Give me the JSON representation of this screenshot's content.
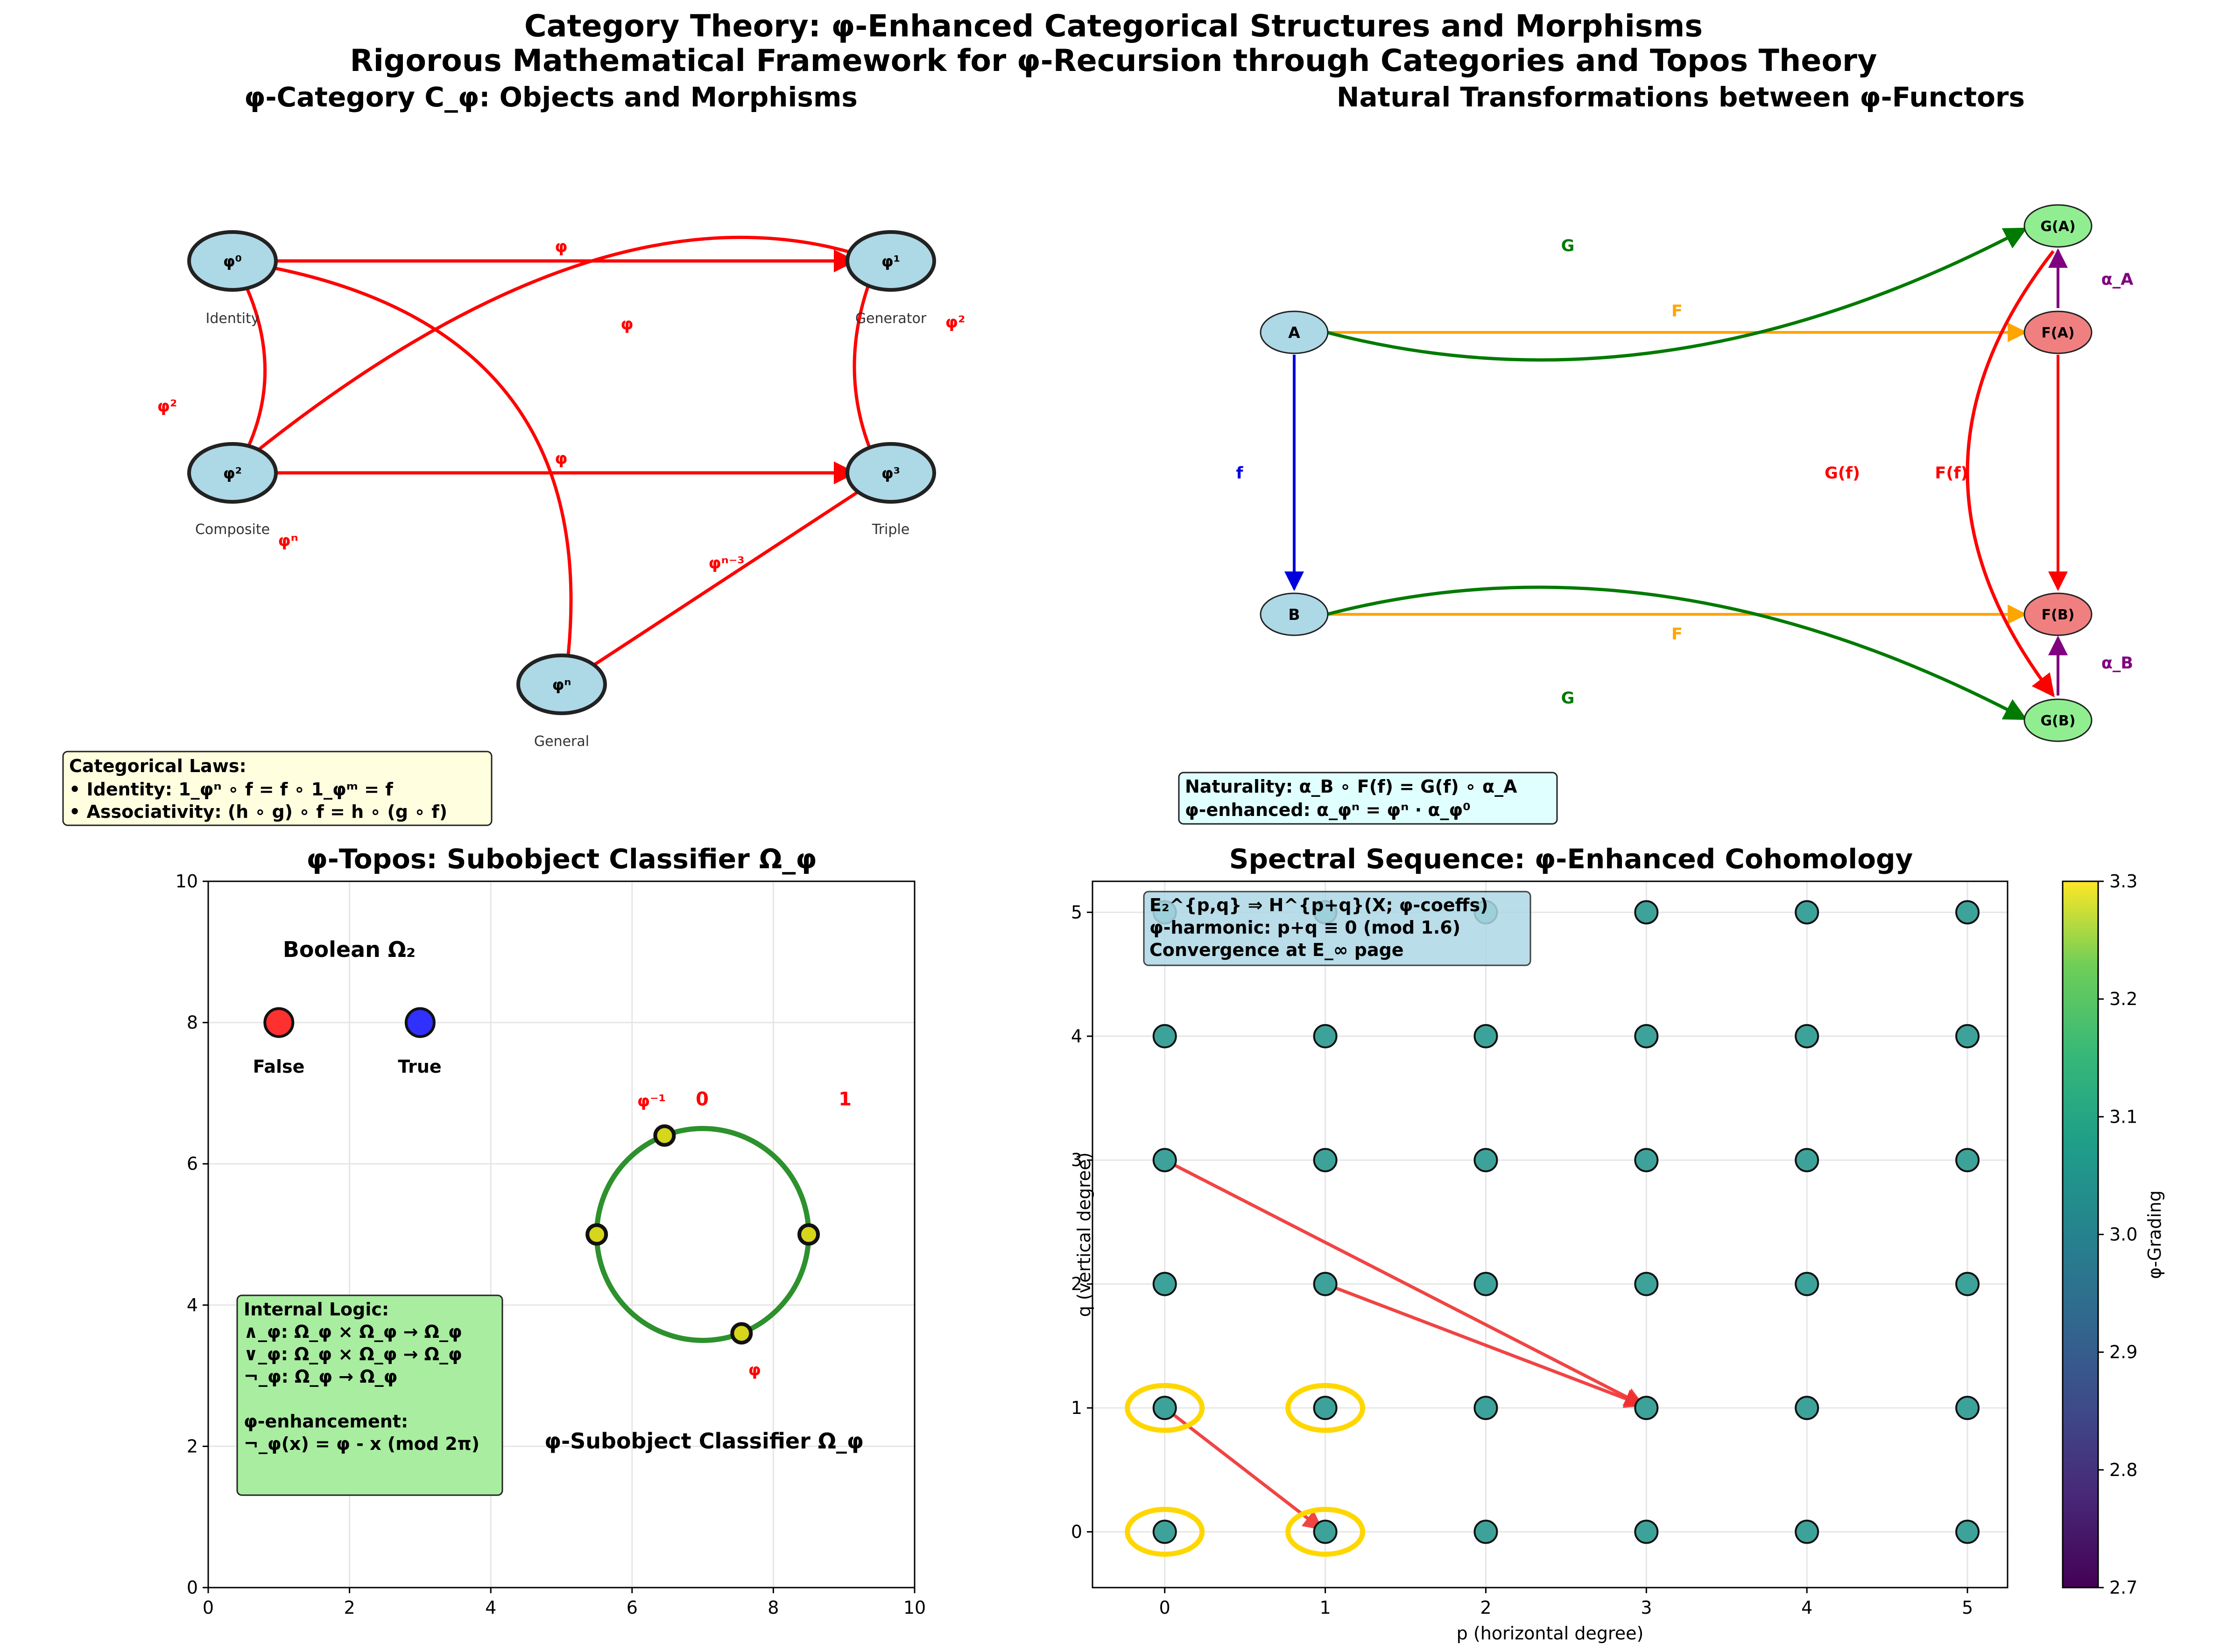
{
  "figure": {
    "title_line1": "Category Theory: φ-Enhanced Categorical Structures and Morphisms",
    "title_line2": "Rigorous Mathematical Framework for φ-Recursion through Categories and Topos Theory"
  },
  "colors": {
    "node_fill": "#add8e6",
    "node_stroke": "#222222",
    "morphism": "#ff0000",
    "functor_F": "#ffa500",
    "functor_G": "#007a00",
    "morphism_f": "#0000dd",
    "transform": "#800080",
    "FA_fill": "#f08080",
    "GA_fill": "#90ee90",
    "circle": "#228b22",
    "highlight": "#ffd700",
    "scatter_point": "#3da39a",
    "d_arrow": "#f03030"
  },
  "panel_category": {
    "title": "φ-Category C_φ: Objects and Morphisms",
    "nodes": [
      {
        "label": "φ⁰",
        "sub": "Identity"
      },
      {
        "label": "φ¹",
        "sub": "Generator"
      },
      {
        "label": "φ²",
        "sub": "Composite"
      },
      {
        "label": "φ³",
        "sub": "Triple"
      },
      {
        "label": "φⁿ",
        "sub": "General"
      }
    ],
    "arrow_labels": [
      "φ",
      "φ",
      "φ²",
      "φ²",
      "φ",
      "φⁿ",
      "φⁿ⁻³"
    ],
    "laws_box": [
      "Categorical Laws:",
      "• Identity: 1_φⁿ ∘ f = f ∘ 1_φᵐ = f",
      "• Associativity: (h ∘ g) ∘ f = h ∘ (g ∘ f)"
    ],
    "laws_box_fill": "#ffffe0"
  },
  "panel_natural": {
    "title": "Natural Transformations between φ-Functors",
    "nodes": {
      "A": "A",
      "B": "B",
      "FA": "F(A)",
      "FB": "F(B)",
      "GA": "G(A)",
      "GB": "G(B)"
    },
    "labels": {
      "F_top": "F",
      "F_bottom": "F",
      "G_top": "G",
      "G_bottom": "G",
      "f": "f",
      "Gf": "G(f)",
      "Ff": "F(f)",
      "alpha_A": "α_A",
      "alpha_B": "α_B"
    },
    "box": [
      "Naturality: α_B ∘ F(f) = G(f) ∘ α_A",
      "φ-enhanced: α_φⁿ = φⁿ · α_φ⁰"
    ],
    "box_fill": "#e0ffff"
  },
  "panel_topos": {
    "title": "φ-Topos: Subobject Classifier Ω_φ",
    "boolean_title": "Boolean Ω₂",
    "false_label": "False",
    "true_label": "True",
    "false_color": "#ff3030",
    "true_color": "#3030ff",
    "xlim": [
      0,
      10
    ],
    "ylim": [
      0,
      10
    ],
    "ticks": [
      0,
      2,
      4,
      6,
      8,
      10
    ],
    "boolean_points": [
      {
        "x": 1,
        "y": 8
      },
      {
        "x": 3,
        "y": 8
      }
    ],
    "circle": {
      "cx": 7,
      "cy": 5,
      "r": 1.5
    },
    "circle_points": [
      {
        "x": 5.5,
        "y": 5.0,
        "label": "0"
      },
      {
        "x": 8.5,
        "y": 5.0,
        "label": "1"
      },
      {
        "x": 6.46,
        "y": 6.4,
        "label": "φ⁻¹"
      },
      {
        "x": 7.55,
        "y": 3.6,
        "label": "φ"
      }
    ],
    "classifier_label": "φ-Subobject Classifier Ω_φ",
    "logic_box": [
      "Internal Logic:",
      "∧_φ: Ω_φ × Ω_φ → Ω_φ",
      "∨_φ: Ω_φ × Ω_φ → Ω_φ",
      "¬_φ: Ω_φ → Ω_φ",
      "",
      "φ-enhancement:",
      "¬_φ(x) = φ - x (mod 2π)"
    ],
    "logic_box_fill": "#a8eda0"
  },
  "chart_data": {
    "type": "scatter",
    "title": "Spectral Sequence: φ-Enhanced Cohomology",
    "xlabel": "p (horizontal degree)",
    "ylabel": "q (vertical degree)",
    "xlim": [
      -0.45,
      5.25
    ],
    "ylim": [
      -0.45,
      5.25
    ],
    "xticks": [
      0,
      1,
      2,
      3,
      4,
      5
    ],
    "yticks": [
      0,
      1,
      2,
      3,
      4,
      5
    ],
    "points_grid": {
      "p": [
        0,
        1,
        2,
        3,
        4,
        5
      ],
      "q": [
        0,
        1,
        2,
        3,
        4,
        5
      ]
    },
    "highlighted": [
      {
        "p": 0,
        "q": 0
      },
      {
        "p": 1,
        "q": 0
      },
      {
        "p": 0,
        "q": 1
      },
      {
        "p": 1,
        "q": 1
      }
    ],
    "differentials": [
      {
        "from": [
          0,
          1
        ],
        "to": [
          1,
          0
        ]
      },
      {
        "from": [
          0,
          3
        ],
        "to": [
          3,
          1
        ]
      },
      {
        "from": [
          1,
          2
        ],
        "to": [
          3,
          1
        ]
      }
    ],
    "info_box": [
      "E₂^{p,q} ⇒ H^{p+q}(X; φ-coeffs)",
      "φ-harmonic: p+q ≡ 0 (mod 1.6)",
      "Convergence at E_∞ page"
    ],
    "info_box_fill": "#add8e6",
    "colorbar": {
      "label": "φ-Grading",
      "min": 2.7,
      "max": 3.3,
      "ticks": [
        2.7,
        2.8,
        2.9,
        3.0,
        3.1,
        3.2,
        3.3
      ],
      "tick_labels": [
        "2.7",
        "2.8",
        "2.9",
        "3.0",
        "3.1",
        "3.2",
        "3.3"
      ]
    }
  }
}
